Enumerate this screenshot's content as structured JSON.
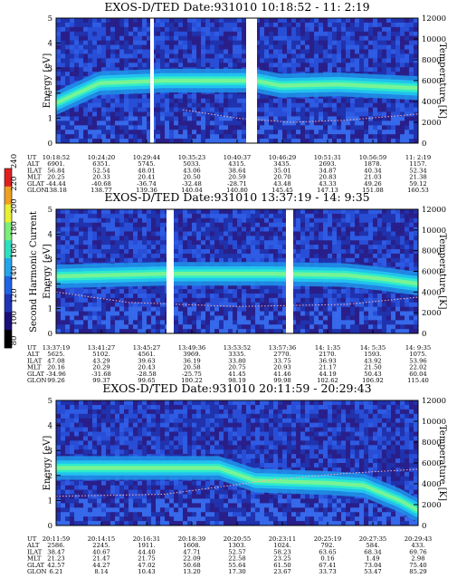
{
  "chart_data": [
    {
      "type": "heatmap",
      "title": "EXOS-D/TED   Date:931010  10:18:52 - 11: 2:19",
      "ylabel": "Energy [eV]",
      "y2label": "Temperature [K]",
      "ylim": [
        0,
        5
      ],
      "y2lim": [
        0,
        12000
      ],
      "yticks": [
        "0",
        "1",
        "2",
        "3",
        "4",
        "5"
      ],
      "y2ticks": [
        "0",
        "2000",
        "4000",
        "6000",
        "8000",
        "10000",
        "12000"
      ],
      "band": [
        [
          0,
          1.6
        ],
        [
          0.12,
          2.4
        ],
        [
          0.3,
          2.5
        ],
        [
          0.45,
          2.5
        ],
        [
          0.55,
          2.5
        ],
        [
          0.62,
          2.3
        ],
        [
          0.78,
          2.35
        ],
        [
          1,
          2.2
        ]
      ],
      "temperature": [
        [
          0.35,
          3200
        ],
        [
          0.5,
          2400
        ],
        [
          0.65,
          2000
        ],
        [
          0.8,
          2200
        ],
        [
          1,
          2800
        ]
      ],
      "gaps": [
        [
          0.26,
          0.27
        ],
        [
          0.525,
          0.555
        ]
      ],
      "table": {
        "labels": [
          "UT",
          "ALT",
          "ILAT",
          "MLT",
          "GLAT",
          "GLON"
        ],
        "columns": [
          [
            "10:18:52",
            "6901.",
            "56.84",
            "20.25",
            "-44.44",
            "138.18"
          ],
          [
            "10:24:20",
            "6351.",
            "52.54",
            "20.33",
            "-40.68",
            "138.77"
          ],
          [
            "10:29:44",
            "5745.",
            "48.01",
            "20.41",
            "-36.74",
            "139.36"
          ],
          [
            "10:35:23",
            "5033.",
            "43.06",
            "20.50",
            "-32.48",
            "140.04"
          ],
          [
            "10:40:37",
            "4315.",
            "38.64",
            "20.59",
            "-28.71",
            "140.80"
          ],
          [
            "10:46:29",
            "3435.",
            "35.01",
            "20.70",
            "43.48",
            "145.45"
          ],
          [
            "10:51:31",
            "2693.",
            "34.87",
            "20.83",
            "43.33",
            "147.13"
          ],
          [
            "10:56:59",
            "1878.",
            "40.34",
            "21.03",
            "49.26",
            "151.08"
          ],
          [
            "11: 2:19",
            "1157.",
            "52.34",
            "21.38",
            "59.12",
            "160.53"
          ]
        ]
      }
    },
    {
      "type": "heatmap",
      "title": "EXOS-D/TED   Date:931010  13:37:19 - 14: 9:35",
      "ylabel": "Energy [eV]",
      "y2label": "Temperature [K]",
      "ylim": [
        0,
        5
      ],
      "y2lim": [
        0,
        12000
      ],
      "yticks": [
        "0",
        "1",
        "2",
        "3",
        "4",
        "5"
      ],
      "y2ticks": [
        "0",
        "2000",
        "4000",
        "6000",
        "8000",
        "10000",
        "12000"
      ],
      "band": [
        [
          0,
          2.3
        ],
        [
          0.3,
          2.4
        ],
        [
          0.6,
          2.4
        ],
        [
          0.8,
          2.35
        ],
        [
          0.9,
          2.2
        ],
        [
          1,
          2.0
        ]
      ],
      "temperature": [
        [
          0,
          4000
        ],
        [
          0.2,
          3000
        ],
        [
          0.5,
          2600
        ],
        [
          0.8,
          2800
        ],
        [
          1,
          3500
        ]
      ],
      "gaps": [
        [
          0.305,
          0.325
        ],
        [
          0.635,
          0.655
        ]
      ],
      "table": {
        "labels": [
          "UT",
          "ALT",
          "ILAT",
          "MLT",
          "GLAT",
          "GLON"
        ],
        "columns": [
          [
            "13:37:19",
            "5625.",
            "47.08",
            "20.16",
            "-34.96",
            "99.26"
          ],
          [
            "13:41:27",
            "5102.",
            "43.29",
            "20.29",
            "-31.68",
            "99.37"
          ],
          [
            "13:45:27",
            "4561.",
            "39.63",
            "20.43",
            "-28.58",
            "99.65"
          ],
          [
            "13:49:36",
            "3969.",
            "36.19",
            "20.58",
            "-25.75",
            "100.22"
          ],
          [
            "13:53:52",
            "3335.",
            "33.80",
            "20.75",
            "41.45",
            "98.19"
          ],
          [
            "13:57:36",
            "2770.",
            "33.75",
            "20.93",
            "41.46",
            "99.98"
          ],
          [
            "14: 1:35",
            "2170.",
            "36.93",
            "21.17",
            "44.19",
            "102.62"
          ],
          [
            "14: 5:35",
            "1593.",
            "43.92",
            "21.50",
            "50.43",
            "106.92"
          ],
          [
            "14: 9:35",
            "1075.",
            "53.96",
            "22.02",
            "60.04",
            "115.40"
          ]
        ]
      }
    },
    {
      "type": "heatmap",
      "title": "EXOS-D/TED   Date:931010  20:11:59 - 20:29:43",
      "ylabel": "Energy [eV]",
      "y2label": "Temperature [K]",
      "ylim": [
        0,
        5
      ],
      "y2lim": [
        0,
        12000
      ],
      "yticks": [
        "0",
        "1",
        "2",
        "3",
        "4",
        "5"
      ],
      "y2ticks": [
        "0",
        "2000",
        "4000",
        "6000",
        "8000",
        "10000",
        "12000"
      ],
      "band": [
        [
          0,
          2.3
        ],
        [
          0.3,
          2.3
        ],
        [
          0.45,
          2.3
        ],
        [
          0.55,
          1.8
        ],
        [
          0.75,
          1.7
        ],
        [
          0.85,
          1.6
        ],
        [
          0.95,
          1.0
        ],
        [
          1,
          0.6
        ]
      ],
      "temperature": [
        [
          0,
          2800
        ],
        [
          0.3,
          3000
        ],
        [
          0.6,
          4400
        ],
        [
          0.8,
          5000
        ],
        [
          1,
          5400
        ]
      ],
      "gaps": [],
      "table": {
        "labels": [
          "UT",
          "ALT",
          "ILAT",
          "MLT",
          "GLAT",
          "GLON"
        ],
        "columns": [
          [
            "20:11:59",
            "2586.",
            "38.47",
            "21.23",
            "42.57",
            "6.21"
          ],
          [
            "20:14:15",
            "2245.",
            "40.67",
            "21.47",
            "44.27",
            "8.14"
          ],
          [
            "20:16:31",
            "1911.",
            "44.40",
            "21.75",
            "47.02",
            "10.43"
          ],
          [
            "20:18:39",
            "1608.",
            "47.71",
            "22.09",
            "50.68",
            "13.20"
          ],
          [
            "20:20:55",
            "1303.",
            "52.57",
            "22.58",
            "55.64",
            "17.30"
          ],
          [
            "20:23:11",
            "1024.",
            "58.23",
            "23.25",
            "61.50",
            "23.67"
          ],
          [
            "20:25:19",
            "792.",
            "63.65",
            "0.16",
            "67.41",
            "33.73"
          ],
          [
            "20:27:35",
            "584.",
            "68.34",
            "1.49",
            "73.04",
            "53.47"
          ],
          [
            "20:29:43",
            "433.",
            "69.76",
            "2.98",
            "75.40",
            "85.29"
          ]
        ]
      }
    }
  ],
  "colorbar": {
    "label": "Second Harmonic Current",
    "ticks": [
      "80",
      "100",
      "120",
      "140",
      "160",
      "180",
      "200",
      "220",
      "240"
    ],
    "colors": [
      "#000000",
      "#1a0f7a",
      "#1f35b8",
      "#1f64e6",
      "#22a6ee",
      "#2ee0c0",
      "#7af07a",
      "#e8f032",
      "#f0a020",
      "#e02020"
    ]
  }
}
